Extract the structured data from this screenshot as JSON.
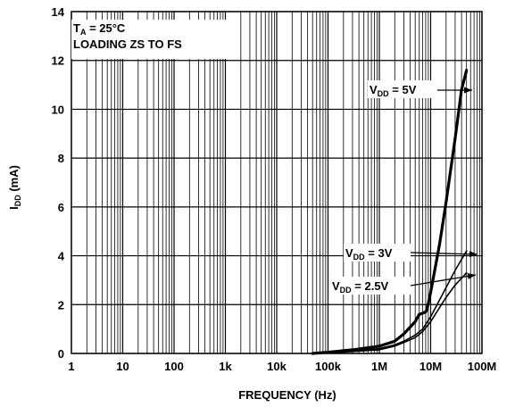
{
  "chart_data": {
    "type": "line",
    "x_scale": "log",
    "xlim": [
      1,
      100000000
    ],
    "ylim": [
      0,
      14
    ],
    "grid": true,
    "xlabel": "FREQUENCY (Hz)",
    "ylabel": {
      "main": "I",
      "sub": "DD",
      "rest": " (mA)"
    },
    "x_ticks": [
      {
        "value": 1,
        "label": "1"
      },
      {
        "value": 10,
        "label": "10"
      },
      {
        "value": 100,
        "label": "100"
      },
      {
        "value": 1000,
        "label": "1k"
      },
      {
        "value": 10000,
        "label": "10k"
      },
      {
        "value": 100000,
        "label": "100k"
      },
      {
        "value": 1000000,
        "label": "1M"
      },
      {
        "value": 10000000,
        "label": "10M"
      },
      {
        "value": 100000000,
        "label": "100M"
      }
    ],
    "y_ticks": [
      {
        "value": 0,
        "label": "0"
      },
      {
        "value": 2,
        "label": "2"
      },
      {
        "value": 4,
        "label": "4"
      },
      {
        "value": 6,
        "label": "6"
      },
      {
        "value": 8,
        "label": "8"
      },
      {
        "value": 10,
        "label": "10"
      },
      {
        "value": 12,
        "label": "12"
      },
      {
        "value": 14,
        "label": "14"
      }
    ],
    "annotation": {
      "line1": {
        "main": "T",
        "sub": "A",
        "rest": " = 25°C"
      },
      "line2": "LOADING ZS TO FS"
    },
    "series": [
      {
        "label": {
          "main": "V",
          "sub": "DD",
          "rest": " = 5V"
        },
        "x": [
          50000,
          100000,
          300000,
          1000000,
          2000000,
          3000000,
          5000000,
          6000000,
          7000000,
          8000000,
          8500000,
          10000000,
          15000000,
          20000000,
          30000000,
          40000000,
          50000000
        ],
        "y": [
          0,
          0.05,
          0.15,
          0.3,
          0.5,
          0.8,
          1.3,
          1.6,
          1.65,
          1.7,
          1.8,
          2.5,
          4.5,
          6.2,
          8.8,
          10.8,
          11.6
        ]
      },
      {
        "label": {
          "main": "V",
          "sub": "DD",
          "rest": " = 3V"
        },
        "x": [
          50000,
          100000,
          300000,
          1000000,
          2000000,
          3000000,
          5000000,
          7000000,
          10000000,
          20000000,
          30000000,
          50000000
        ],
        "y": [
          0,
          0.03,
          0.1,
          0.2,
          0.35,
          0.5,
          0.75,
          1.0,
          1.5,
          2.7,
          3.4,
          4.2
        ]
      },
      {
        "label": {
          "main": "V",
          "sub": "DD",
          "rest": " = 2.5V"
        },
        "x": [
          50000,
          100000,
          300000,
          1000000,
          2000000,
          3000000,
          5000000,
          7000000,
          10000000,
          20000000,
          30000000,
          50000000
        ],
        "y": [
          0,
          0.02,
          0.08,
          0.15,
          0.3,
          0.45,
          0.65,
          0.9,
          1.3,
          2.3,
          2.8,
          3.3
        ]
      }
    ]
  }
}
